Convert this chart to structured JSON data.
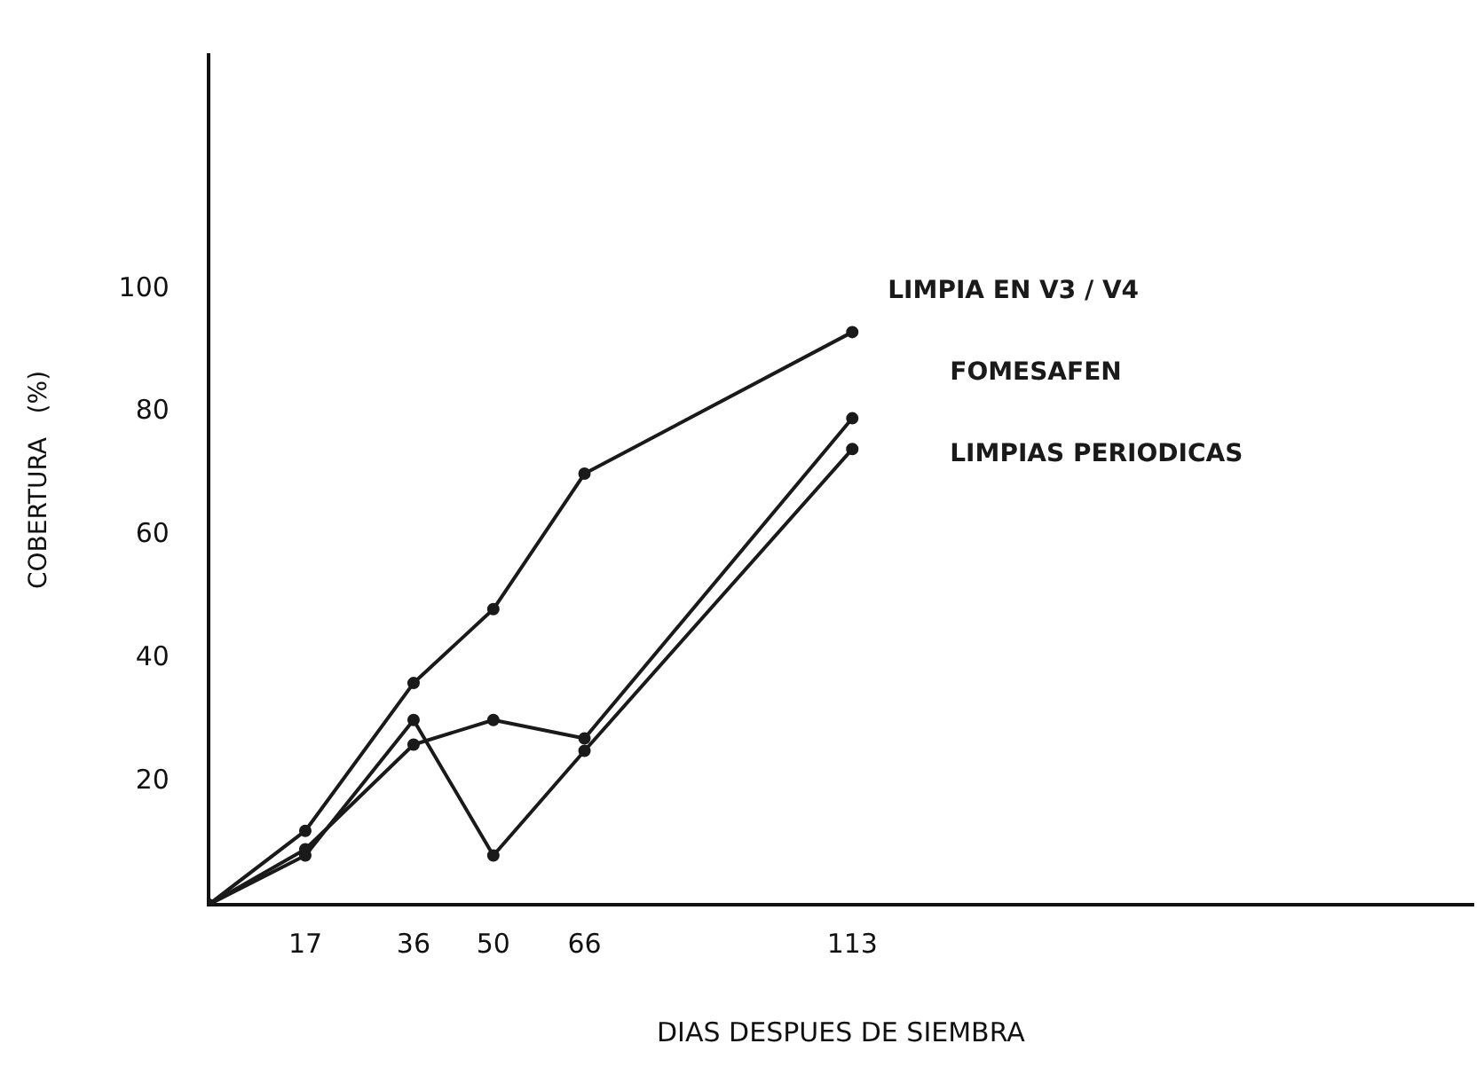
{
  "chart_data": {
    "type": "line",
    "xlabel": "DIAS DESPUES DE SIEMBRA",
    "ylabel": "COBERTURA   (%)",
    "x": [
      0,
      17,
      36,
      50,
      66,
      113
    ],
    "series": [
      {
        "name": "LIMPIA EN V3 / V4",
        "color": "#1a1a1a",
        "values": [
          0,
          12,
          36,
          48,
          70,
          93
        ]
      },
      {
        "name": "FOMESAFEN",
        "color": "#1a1a1a",
        "values": [
          0,
          9,
          26,
          30,
          27,
          79
        ]
      },
      {
        "name": "LIMPIAS PERIODICAS",
        "color": "#1a1a1a",
        "values": [
          0,
          8,
          30,
          8,
          25,
          74
        ]
      }
    ],
    "xlim": [
      0,
      222
    ],
    "xticks": [
      17,
      36,
      50,
      66,
      113
    ],
    "ylim": [
      0,
      138
    ],
    "yticks": [
      20,
      40,
      60,
      80,
      100
    ],
    "grid": false,
    "legend": false,
    "marker": "circle",
    "line_style": "solid"
  }
}
